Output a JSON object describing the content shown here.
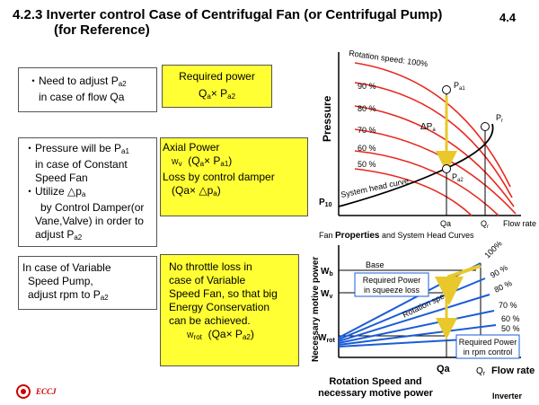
{
  "title_line1": "4.2.3 Inverter control Case of Centrifugal Fan (or Centrifugal Pump)",
  "title_line2": "(for Reference)",
  "page_number": "4.4",
  "boxes": {
    "flow_adjust": {
      "line1": "・Need to adjust P",
      "line1_sub": "a2",
      "line2": "in case of flow  Qa"
    },
    "required_power": {
      "title": "Required power",
      "formula_q": "Q",
      "formula_q_sub": "a",
      "formula_x": "× P",
      "formula_p_sub": "a2"
    },
    "constant_speed": {
      "l1": "・Pressure will be P",
      "l1_sub": "a1",
      "l2": "in case of Constant",
      "l3": "Speed Fan",
      "l4": "・Utilize △p",
      "l4_sub": "a",
      "l5": "by Control Damper(or",
      "l6": "Vane,Valve)  in order to",
      "l7": "adjust P",
      "l7_sub": "a2"
    },
    "axial_power": {
      "l1": "Axial Power",
      "l2a": "W",
      "l2a_sub": "v",
      "l2b": "(Q",
      "l2b_sub": "a",
      "l2c": "× P",
      "l2c_sub": "a1",
      "l2d": ")",
      "l3": "Loss by control damper",
      "l4a": "(Qa×  △p",
      "l4a_sub": "a",
      "l4b": ")"
    },
    "variable_speed": {
      "l1": "In case of Variable",
      "l2": "Speed Pump,",
      "l3": "adjust rpm to P",
      "l3_sub": "a2"
    },
    "no_throttle": {
      "l1": "No throttle loss in",
      "l2": "case of Variable",
      "l3": "Speed Fan, so that big",
      "l4": "Energy Conservation",
      "l5": "can be achieved.",
      "l6a": "W",
      "l6a_sub": "rot",
      "l6b": "(Qa× P",
      "l6b_sub": "a2",
      "l6c": ")"
    }
  },
  "top_chart": {
    "ylabel": "Pressure",
    "xlabel": "Flow rate",
    "rotation_label": "Rotation speed: 100%",
    "speed_labels": [
      "90 %",
      "80 %",
      "70 %",
      "60 %",
      "50 %"
    ],
    "system_curve_label": "System head curve",
    "delta_label": "ΔP",
    "delta_sub": "a",
    "p_a1": "P",
    "p_a1_sub": "a1",
    "p_a2": "P",
    "p_a2_sub": "a2",
    "p_r": "P",
    "p_r_sub": "r",
    "p_10": "P",
    "p_10_sub": "10",
    "x_qa": "Qa",
    "x_qr": "Q",
    "x_qr_sub": "r",
    "caption_a": "Fan ",
    "caption_b": "Properties",
    "caption_c": " and System Head Curves"
  },
  "bottom_chart": {
    "ylabel": "Necessary motive power",
    "w_b": "W",
    "w_b_sub": "b",
    "w_v": "W",
    "w_v_sub": "v",
    "w_rot": "W",
    "w_rot_sub": "rot",
    "base_label": "Base",
    "squeeze_l1": "Required Power",
    "squeeze_l2": "in squeeze loss",
    "rotation_label": "Rotation speed",
    "percent_labels": [
      "100%",
      "90 %",
      "80 %",
      "70 %",
      "60 %",
      "50 %"
    ],
    "rpm_l1": "Required Power",
    "rpm_l2": "in rpm control",
    "x_qa": "Qa",
    "x_qr": "Q",
    "x_qr_sub": "r",
    "xlabel": "Flow rate",
    "caption_l1": "Rotation Speed and",
    "caption_l2": "necessary motive power"
  },
  "footer": {
    "logo": "ECCJ",
    "label": "Inverter"
  },
  "colors": {
    "curves": "#e8281e",
    "system": "#000000",
    "rotation_lines": "#1a5cd6",
    "yellow": "#ffff33",
    "arrow": "#e8c82a"
  }
}
